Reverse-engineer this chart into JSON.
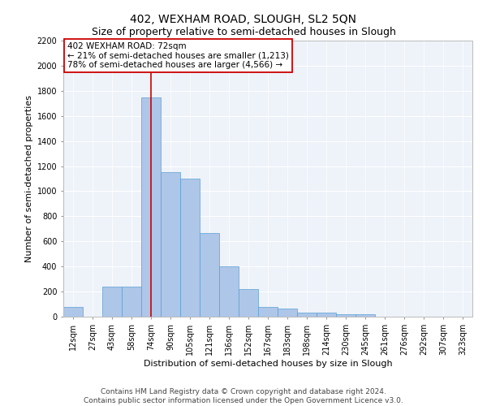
{
  "title": "402, WEXHAM ROAD, SLOUGH, SL2 5QN",
  "subtitle": "Size of property relative to semi-detached houses in Slough",
  "xlabel": "Distribution of semi-detached houses by size in Slough",
  "ylabel": "Number of semi-detached properties",
  "categories": [
    "12sqm",
    "27sqm",
    "43sqm",
    "58sqm",
    "74sqm",
    "90sqm",
    "105sqm",
    "121sqm",
    "136sqm",
    "152sqm",
    "167sqm",
    "183sqm",
    "198sqm",
    "214sqm",
    "230sqm",
    "245sqm",
    "261sqm",
    "276sqm",
    "292sqm",
    "307sqm",
    "323sqm"
  ],
  "values": [
    80,
    0,
    240,
    240,
    1750,
    1150,
    1100,
    665,
    400,
    220,
    80,
    65,
    30,
    30,
    20,
    20,
    0,
    0,
    0,
    0,
    0
  ],
  "bar_color": "#aec6e8",
  "bar_edge_color": "#5a9fd4",
  "property_bin_index": 4,
  "red_line_color": "#cc0000",
  "annotation_text": "402 WEXHAM ROAD: 72sqm\n← 21% of semi-detached houses are smaller (1,213)\n78% of semi-detached houses are larger (4,566) →",
  "box_color": "#ffffff",
  "box_edge_color": "#cc0000",
  "ylim": [
    0,
    2200
  ],
  "yticks": [
    0,
    200,
    400,
    600,
    800,
    1000,
    1200,
    1400,
    1600,
    1800,
    2000,
    2200
  ],
  "footer": "Contains HM Land Registry data © Crown copyright and database right 2024.\nContains public sector information licensed under the Open Government Licence v3.0.",
  "background_color": "#eef2f9",
  "grid_color": "#ffffff",
  "title_fontsize": 10,
  "subtitle_fontsize": 9,
  "axis_label_fontsize": 8,
  "tick_fontsize": 7,
  "annotation_fontsize": 7.5,
  "footer_fontsize": 6.5
}
